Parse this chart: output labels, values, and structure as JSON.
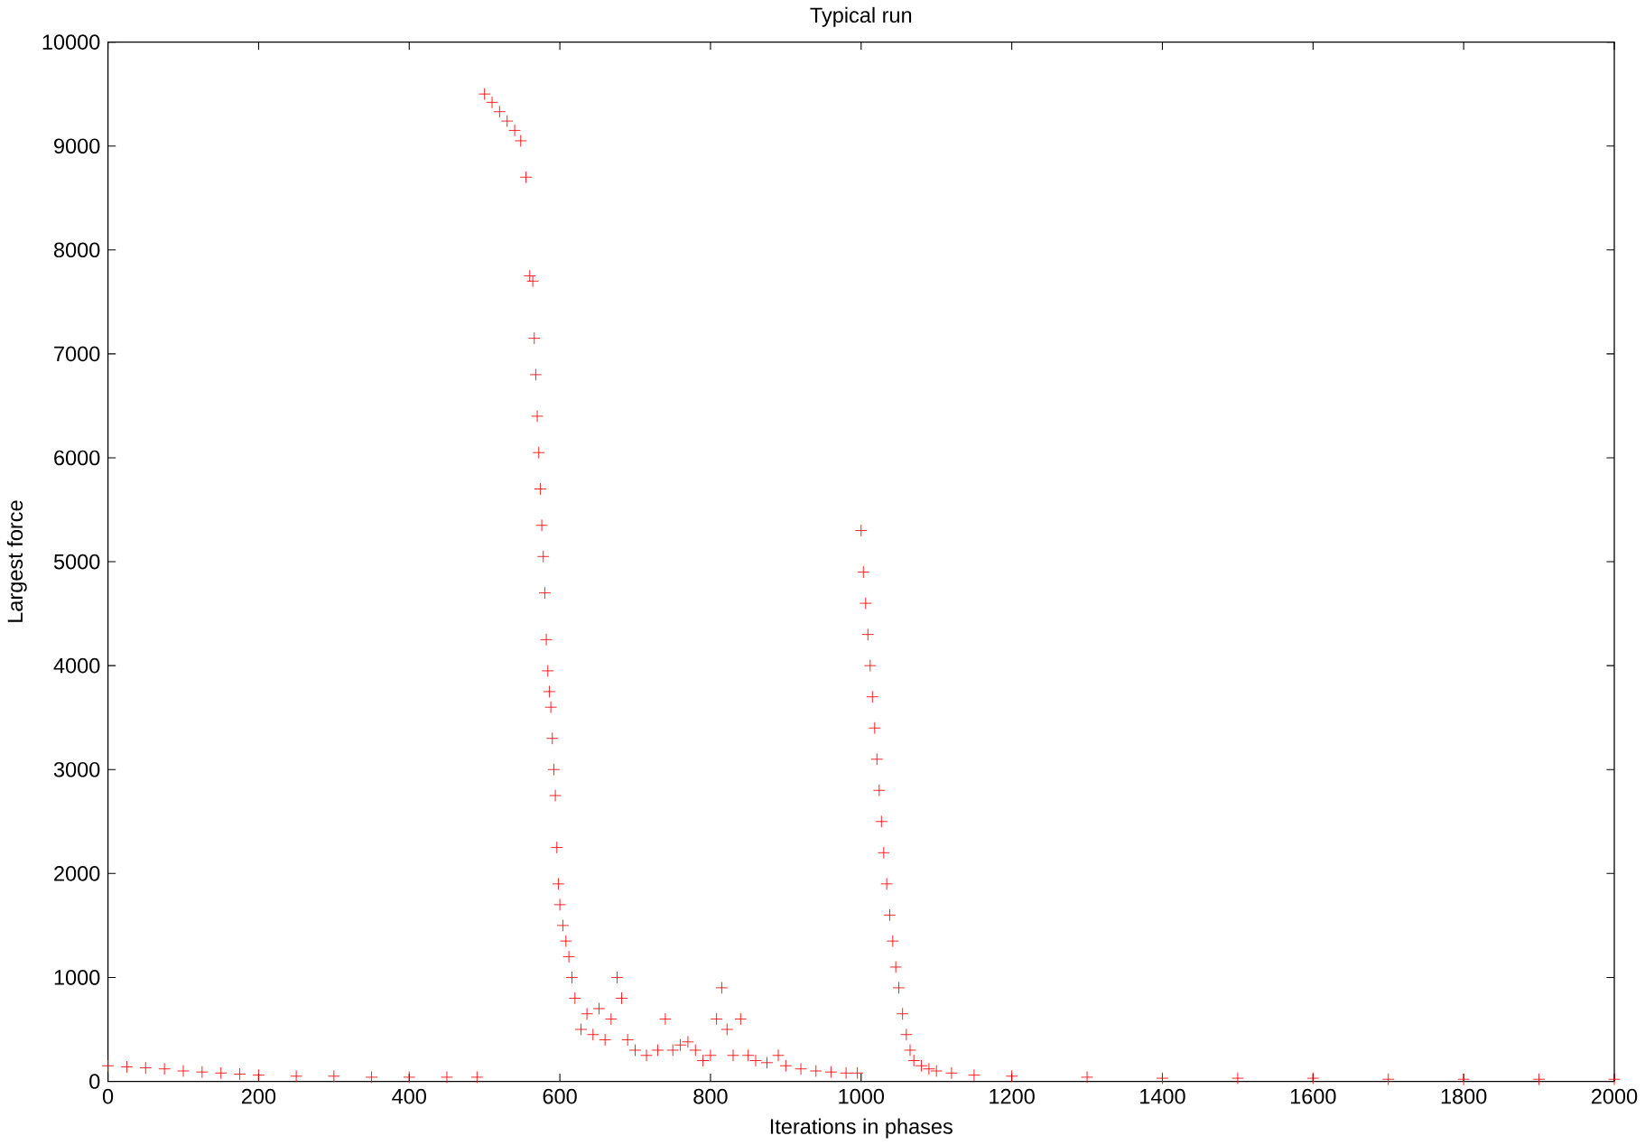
{
  "chart_data": {
    "type": "scatter",
    "title": "Typical run",
    "xlabel": "Iterations in phases",
    "ylabel": "Largest force",
    "marker": "cross",
    "grid": false,
    "xlim": [
      0,
      2000
    ],
    "ylim": [
      0,
      10000
    ],
    "xticks": [
      0,
      200,
      400,
      600,
      800,
      1000,
      1200,
      1400,
      1600,
      1800,
      2000
    ],
    "yticks": [
      0,
      1000,
      2000,
      3000,
      4000,
      5000,
      6000,
      7000,
      8000,
      9000,
      10000
    ],
    "series": [
      {
        "color": "#ff0000",
        "x": [
          0,
          25,
          50,
          75,
          100,
          125,
          150,
          175,
          200,
          250,
          300,
          350,
          400,
          450,
          490,
          500,
          510,
          520,
          530,
          540,
          548,
          555,
          560,
          564,
          566,
          568,
          570,
          572,
          574,
          576,
          578,
          580,
          582,
          584,
          586,
          588,
          590,
          592,
          594,
          596,
          598,
          600,
          604,
          608,
          612,
          616,
          620,
          628,
          636,
          644,
          652,
          660,
          668,
          676,
          682,
          690,
          700,
          715,
          730,
          740,
          750,
          760,
          770,
          780,
          790,
          800,
          808,
          815,
          822,
          830,
          840,
          850,
          860,
          875,
          890,
          900,
          920,
          940,
          960,
          980,
          995,
          1000,
          1003,
          1006,
          1009,
          1012,
          1015,
          1018,
          1021,
          1024,
          1027,
          1030,
          1034,
          1038,
          1042,
          1046,
          1050,
          1055,
          1060,
          1065,
          1070,
          1080,
          1090,
          1100,
          1120,
          1150,
          1200,
          1300,
          1400,
          1500,
          1600,
          1700,
          1800,
          1900,
          2000
        ],
        "values": [
          150,
          140,
          130,
          120,
          100,
          90,
          80,
          70,
          60,
          50,
          50,
          40,
          40,
          40,
          40,
          9500,
          9420,
          9330,
          9240,
          9150,
          9050,
          8700,
          7750,
          7700,
          7150,
          6800,
          6400,
          6050,
          5700,
          5350,
          5050,
          4700,
          4250,
          3950,
          3750,
          3600,
          3300,
          3000,
          2750,
          2250,
          1900,
          1700,
          1500,
          1350,
          1200,
          1000,
          800,
          500,
          650,
          450,
          700,
          400,
          600,
          1000,
          800,
          400,
          300,
          250,
          300,
          600,
          300,
          350,
          380,
          300,
          200,
          250,
          600,
          900,
          500,
          250,
          600,
          250,
          200,
          180,
          250,
          150,
          120,
          100,
          90,
          80,
          80,
          5300,
          4900,
          4600,
          4300,
          4000,
          3700,
          3400,
          3100,
          2800,
          2500,
          2200,
          1900,
          1600,
          1350,
          1100,
          900,
          650,
          450,
          300,
          200,
          150,
          120,
          100,
          80,
          60,
          50,
          40,
          30,
          30,
          30,
          20,
          20,
          20,
          20
        ]
      }
    ]
  }
}
